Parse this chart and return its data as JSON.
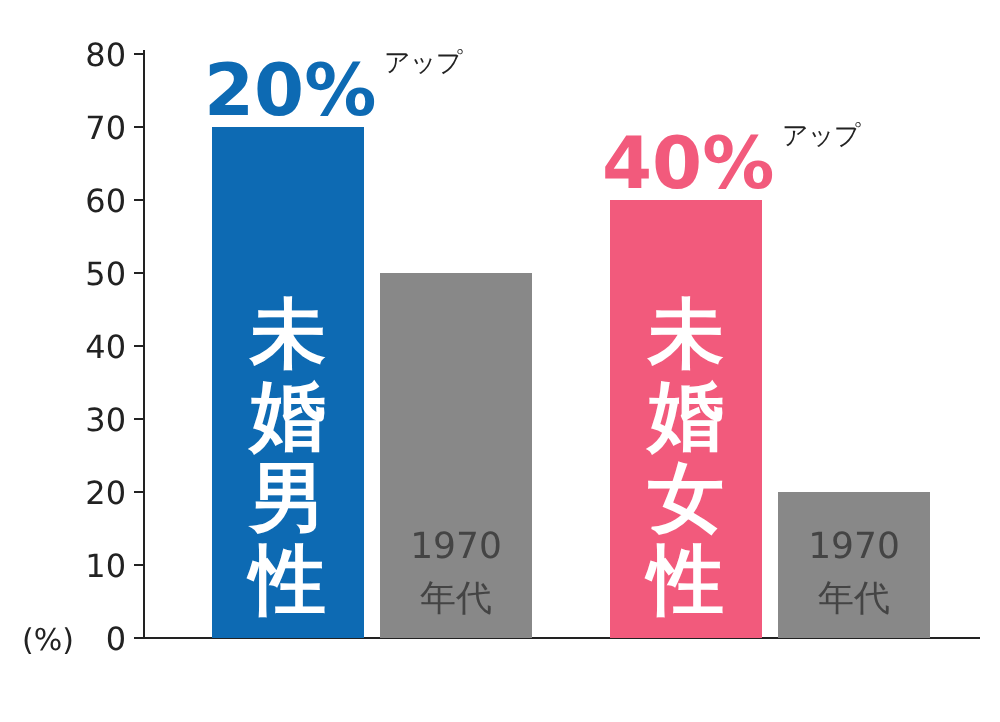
{
  "chart_data": {
    "type": "bar",
    "ylabel": "(%)",
    "categories": [
      "未婚男性",
      "1970年代",
      "未婚女性",
      "1970年代"
    ],
    "values": [
      70,
      50,
      60,
      20
    ],
    "colors": [
      "#0d6ab3",
      "#888888",
      "#f25a7c",
      "#888888"
    ],
    "ylim": [
      0,
      80
    ],
    "yticks": [
      0,
      10,
      20,
      30,
      40,
      50,
      60,
      70,
      80
    ],
    "annotations": [
      {
        "text": "20%$^{アップ}$",
        "x": "未婚男性",
        "y": 70
      },
      {
        "text": "40%$^{アップ}$",
        "x": "未婚女性",
        "y": 60
      }
    ]
  }
}
